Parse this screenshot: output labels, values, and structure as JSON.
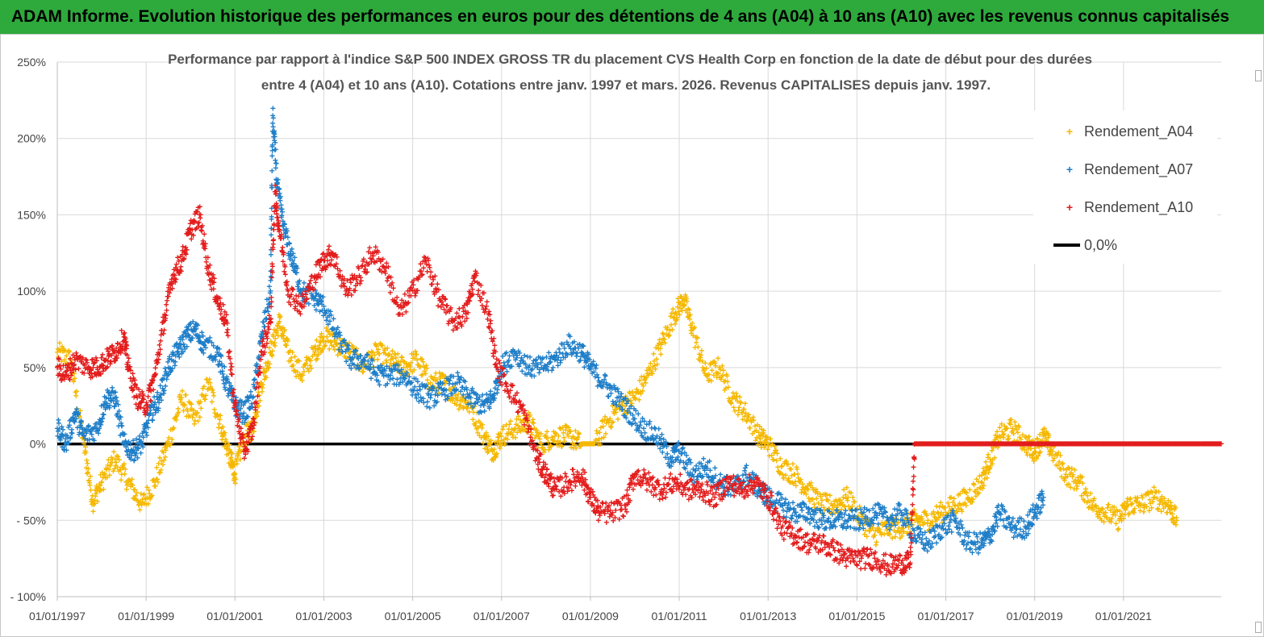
{
  "banner": {
    "text": "ADAM Informe. Evolution historique des performances en euros pour des détentions de 4 ans (A04) à 10 ans (A10) avec les revenus connus capitalisés",
    "color": "#2eaa3c"
  },
  "chart_data": {
    "type": "scatter",
    "title_lines": [
      "Performance par rapport à l'indice S&P 500 INDEX GROSS TR  du placement CVS Health Corp en fonction de la date de début pour des durées",
      "entre 4 (A04) et 10 ans (A10). Cotations entre janv. 1997 et mars. 2026. Revenus CAPITALISES depuis janv. 1997."
    ],
    "xlabel": "",
    "ylabel": "",
    "xlim": [
      1997.0,
      2023.2
    ],
    "ylim": [
      -100,
      250
    ],
    "y_ticks": [
      250,
      200,
      150,
      100,
      50,
      0,
      -50,
      -100
    ],
    "y_tick_labels": [
      "250%",
      "200%",
      "150%",
      "100%",
      "50%",
      "0%",
      "- 50%",
      "- 100%"
    ],
    "x_ticks": [
      1997,
      1999,
      2001,
      2003,
      2005,
      2007,
      2009,
      2011,
      2013,
      2015,
      2017,
      2019,
      2021
    ],
    "x_tick_labels": [
      "01/01/1997",
      "01/01/1999",
      "01/01/2001",
      "01/01/2003",
      "01/01/2005",
      "01/01/2007",
      "01/01/2009",
      "01/01/2011",
      "01/01/2013",
      "01/01/2015",
      "01/01/2017",
      "01/01/2019",
      "01/01/2021"
    ],
    "grid": true,
    "legend_position": "top-right",
    "series": [
      {
        "name": "Rendement_A04",
        "color": "#f5b800",
        "marker": "+",
        "points": [
          [
            1997.0,
            60
          ],
          [
            1997.3,
            55
          ],
          [
            1997.6,
            0
          ],
          [
            1997.8,
            -38
          ],
          [
            1998.0,
            -25
          ],
          [
            1998.3,
            -10
          ],
          [
            1998.6,
            -25
          ],
          [
            1998.9,
            -40
          ],
          [
            1999.2,
            -25
          ],
          [
            1999.5,
            0
          ],
          [
            1999.8,
            30
          ],
          [
            2000.1,
            15
          ],
          [
            2000.4,
            40
          ],
          [
            2000.7,
            10
          ],
          [
            2000.9,
            -10
          ],
          [
            2001.0,
            -20
          ],
          [
            2001.2,
            5
          ],
          [
            2001.4,
            10
          ],
          [
            2001.6,
            40
          ],
          [
            2001.8,
            60
          ],
          [
            2002.0,
            80
          ],
          [
            2002.2,
            60
          ],
          [
            2002.5,
            45
          ],
          [
            2002.8,
            60
          ],
          [
            2003.0,
            70
          ],
          [
            2003.3,
            65
          ],
          [
            2003.6,
            60
          ],
          [
            2003.9,
            50
          ],
          [
            2004.2,
            60
          ],
          [
            2004.5,
            55
          ],
          [
            2004.8,
            50
          ],
          [
            2005.1,
            55
          ],
          [
            2005.4,
            40
          ],
          [
            2005.7,
            40
          ],
          [
            2006.0,
            30
          ],
          [
            2006.3,
            25
          ],
          [
            2006.6,
            5
          ],
          [
            2006.8,
            -5
          ],
          [
            2007.0,
            5
          ],
          [
            2007.3,
            10
          ],
          [
            2007.6,
            15
          ],
          [
            2007.9,
            0
          ],
          [
            2008.2,
            5
          ],
          [
            2008.5,
            5
          ],
          [
            2008.8,
            0
          ],
          [
            2009.1,
            0
          ],
          [
            2009.4,
            15
          ],
          [
            2009.7,
            25
          ],
          [
            2010.0,
            30
          ],
          [
            2010.3,
            45
          ],
          [
            2010.6,
            65
          ],
          [
            2010.9,
            85
          ],
          [
            2011.1,
            95
          ],
          [
            2011.3,
            75
          ],
          [
            2011.6,
            45
          ],
          [
            2011.9,
            50
          ],
          [
            2012.2,
            30
          ],
          [
            2012.5,
            20
          ],
          [
            2012.8,
            5
          ],
          [
            2013.0,
            0
          ],
          [
            2013.3,
            -15
          ],
          [
            2013.6,
            -20
          ],
          [
            2013.9,
            -30
          ],
          [
            2014.2,
            -40
          ],
          [
            2014.5,
            -40
          ],
          [
            2014.8,
            -35
          ],
          [
            2015.1,
            -50
          ],
          [
            2015.4,
            -60
          ],
          [
            2015.7,
            -55
          ],
          [
            2016.0,
            -55
          ],
          [
            2016.3,
            -50
          ],
          [
            2016.6,
            -50
          ],
          [
            2016.9,
            -45
          ],
          [
            2017.2,
            -40
          ],
          [
            2017.5,
            -35
          ],
          [
            2017.8,
            -25
          ],
          [
            2018.0,
            -10
          ],
          [
            2018.2,
            5
          ],
          [
            2018.5,
            10
          ],
          [
            2018.8,
            0
          ],
          [
            2019.0,
            -5
          ],
          [
            2019.2,
            5
          ],
          [
            2019.4,
            -5
          ],
          [
            2019.7,
            -20
          ],
          [
            2020.0,
            -25
          ],
          [
            2020.3,
            -40
          ],
          [
            2020.6,
            -45
          ],
          [
            2020.9,
            -50
          ],
          [
            2021.1,
            -40
          ],
          [
            2021.4,
            -40
          ],
          [
            2021.7,
            -35
          ],
          [
            2022.0,
            -40
          ],
          [
            2022.2,
            -50
          ]
        ]
      },
      {
        "name": "Rendement_A07",
        "color": "#1e7ec8",
        "marker": "+",
        "points": [
          [
            1997.0,
            10
          ],
          [
            1997.2,
            0
          ],
          [
            1997.4,
            20
          ],
          [
            1997.6,
            5
          ],
          [
            1997.9,
            10
          ],
          [
            1998.1,
            30
          ],
          [
            1998.3,
            30
          ],
          [
            1998.5,
            0
          ],
          [
            1998.7,
            -5
          ],
          [
            1998.9,
            0
          ],
          [
            1999.1,
            20
          ],
          [
            1999.3,
            30
          ],
          [
            1999.5,
            50
          ],
          [
            1999.7,
            60
          ],
          [
            1999.9,
            70
          ],
          [
            2000.1,
            75
          ],
          [
            2000.3,
            65
          ],
          [
            2000.6,
            60
          ],
          [
            2000.8,
            40
          ],
          [
            2001.0,
            25
          ],
          [
            2001.2,
            20
          ],
          [
            2001.4,
            30
          ],
          [
            2001.6,
            70
          ],
          [
            2001.8,
            100
          ],
          [
            2001.85,
            215
          ],
          [
            2001.95,
            170
          ],
          [
            2002.1,
            140
          ],
          [
            2002.3,
            120
          ],
          [
            2002.5,
            100
          ],
          [
            2002.8,
            95
          ],
          [
            2003.0,
            90
          ],
          [
            2003.3,
            70
          ],
          [
            2003.6,
            55
          ],
          [
            2003.9,
            55
          ],
          [
            2004.2,
            45
          ],
          [
            2004.5,
            45
          ],
          [
            2004.8,
            45
          ],
          [
            2005.1,
            35
          ],
          [
            2005.4,
            30
          ],
          [
            2005.7,
            35
          ],
          [
            2006.0,
            40
          ],
          [
            2006.3,
            30
          ],
          [
            2006.6,
            25
          ],
          [
            2006.8,
            30
          ],
          [
            2007.0,
            50
          ],
          [
            2007.3,
            60
          ],
          [
            2007.6,
            50
          ],
          [
            2007.9,
            50
          ],
          [
            2008.2,
            55
          ],
          [
            2008.5,
            65
          ],
          [
            2008.8,
            60
          ],
          [
            2009.0,
            50
          ],
          [
            2009.3,
            40
          ],
          [
            2009.6,
            30
          ],
          [
            2009.9,
            20
          ],
          [
            2010.2,
            10
          ],
          [
            2010.5,
            5
          ],
          [
            2010.8,
            -10
          ],
          [
            2011.0,
            -5
          ],
          [
            2011.3,
            -20
          ],
          [
            2011.6,
            -15
          ],
          [
            2011.9,
            -25
          ],
          [
            2012.2,
            -30
          ],
          [
            2012.5,
            -20
          ],
          [
            2012.8,
            -30
          ],
          [
            2013.0,
            -35
          ],
          [
            2013.3,
            -40
          ],
          [
            2013.6,
            -45
          ],
          [
            2013.9,
            -45
          ],
          [
            2014.2,
            -50
          ],
          [
            2014.5,
            -50
          ],
          [
            2014.8,
            -50
          ],
          [
            2015.1,
            -50
          ],
          [
            2015.4,
            -45
          ],
          [
            2015.7,
            -50
          ],
          [
            2016.0,
            -45
          ],
          [
            2016.3,
            -60
          ],
          [
            2016.6,
            -65
          ],
          [
            2016.9,
            -55
          ],
          [
            2017.2,
            -50
          ],
          [
            2017.5,
            -65
          ],
          [
            2017.8,
            -65
          ],
          [
            2018.0,
            -60
          ],
          [
            2018.2,
            -45
          ],
          [
            2018.5,
            -55
          ],
          [
            2018.8,
            -55
          ],
          [
            2019.0,
            -45
          ],
          [
            2019.2,
            -35
          ]
        ]
      },
      {
        "name": "Rendement_A10",
        "color": "#e31c1c",
        "marker": "+",
        "points": [
          [
            1997.0,
            50
          ],
          [
            1997.2,
            45
          ],
          [
            1997.4,
            55
          ],
          [
            1997.7,
            50
          ],
          [
            1997.9,
            50
          ],
          [
            1998.1,
            55
          ],
          [
            1998.3,
            60
          ],
          [
            1998.5,
            70
          ],
          [
            1998.6,
            50
          ],
          [
            1998.8,
            30
          ],
          [
            1999.0,
            25
          ],
          [
            1999.2,
            45
          ],
          [
            1999.4,
            80
          ],
          [
            1999.6,
            110
          ],
          [
            1999.8,
            120
          ],
          [
            2000.0,
            140
          ],
          [
            2000.2,
            150
          ],
          [
            2000.4,
            115
          ],
          [
            2000.6,
            95
          ],
          [
            2000.8,
            80
          ],
          [
            2001.0,
            25
          ],
          [
            2001.2,
            -5
          ],
          [
            2001.4,
            10
          ],
          [
            2001.6,
            60
          ],
          [
            2001.8,
            80
          ],
          [
            2001.9,
            165
          ],
          [
            2002.0,
            140
          ],
          [
            2002.2,
            100
          ],
          [
            2002.5,
            90
          ],
          [
            2002.8,
            110
          ],
          [
            2003.0,
            120
          ],
          [
            2003.2,
            125
          ],
          [
            2003.5,
            100
          ],
          [
            2003.8,
            110
          ],
          [
            2004.1,
            125
          ],
          [
            2004.4,
            115
          ],
          [
            2004.7,
            85
          ],
          [
            2005.0,
            100
          ],
          [
            2005.3,
            120
          ],
          [
            2005.6,
            95
          ],
          [
            2005.9,
            80
          ],
          [
            2006.2,
            85
          ],
          [
            2006.4,
            110
          ],
          [
            2006.7,
            85
          ],
          [
            2006.9,
            50
          ],
          [
            2007.2,
            35
          ],
          [
            2007.5,
            20
          ],
          [
            2007.8,
            -10
          ],
          [
            2008.0,
            -20
          ],
          [
            2008.2,
            -30
          ],
          [
            2008.5,
            -25
          ],
          [
            2008.8,
            -20
          ],
          [
            2009.0,
            -35
          ],
          [
            2009.2,
            -45
          ],
          [
            2009.5,
            -45
          ],
          [
            2009.8,
            -40
          ],
          [
            2010.0,
            -20
          ],
          [
            2010.3,
            -25
          ],
          [
            2010.6,
            -30
          ],
          [
            2010.9,
            -25
          ],
          [
            2011.2,
            -30
          ],
          [
            2011.5,
            -30
          ],
          [
            2011.8,
            -35
          ],
          [
            2012.1,
            -25
          ],
          [
            2012.4,
            -30
          ],
          [
            2012.7,
            -25
          ],
          [
            2013.0,
            -35
          ],
          [
            2013.3,
            -55
          ],
          [
            2013.6,
            -60
          ],
          [
            2013.9,
            -65
          ],
          [
            2014.2,
            -65
          ],
          [
            2014.5,
            -70
          ],
          [
            2014.8,
            -75
          ],
          [
            2015.1,
            -75
          ],
          [
            2015.4,
            -75
          ],
          [
            2015.7,
            -80
          ],
          [
            2016.0,
            -78
          ],
          [
            2016.2,
            -78
          ],
          [
            2016.3,
            0
          ],
          [
            2016.8,
            0
          ],
          [
            2017.3,
            0
          ],
          [
            2017.8,
            0
          ],
          [
            2018.3,
            0
          ],
          [
            2018.8,
            0
          ],
          [
            2019.3,
            0
          ],
          [
            2019.8,
            0
          ],
          [
            2020.3,
            0
          ],
          [
            2020.8,
            0
          ],
          [
            2021.3,
            0
          ],
          [
            2021.8,
            0
          ],
          [
            2022.3,
            0
          ],
          [
            2022.8,
            0
          ],
          [
            2023.2,
            0
          ]
        ]
      },
      {
        "name": "0,0%",
        "color": "#000000",
        "marker": "line",
        "points": [
          [
            1997.0,
            0
          ],
          [
            2023.2,
            0
          ]
        ]
      }
    ]
  }
}
